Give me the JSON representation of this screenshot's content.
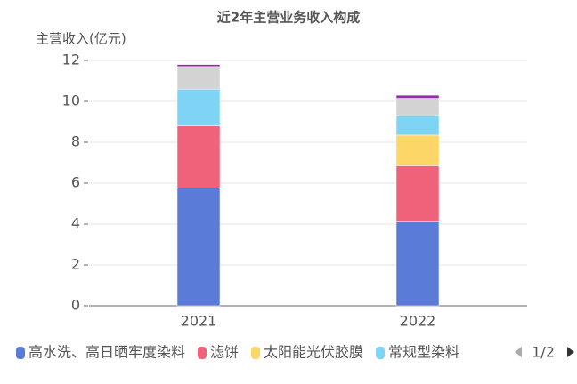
{
  "chart_data": {
    "type": "stacked_bar",
    "title": "近2年主营业务收入构成",
    "y_label": "主营收入(亿元)",
    "categories": [
      "2021",
      "2022"
    ],
    "series": [
      {
        "name": "高水洗、高日晒牢度染料",
        "color": "#5b7bd9",
        "values": [
          5.75,
          4.1
        ]
      },
      {
        "name": "滤饼",
        "color": "#f0617a",
        "values": [
          3.05,
          2.75
        ]
      },
      {
        "name": "太阳能光伏胶膜",
        "color": "#fcd667",
        "values": [
          0,
          1.5
        ]
      },
      {
        "name": "常规型染料",
        "color": "#7fd3f4",
        "values": [
          1.8,
          0.95
        ]
      },
      {
        "color": "#d3d3d3",
        "values": [
          1.1,
          0.85
        ]
      },
      {
        "color": "#9c27b0",
        "values": [
          0.1,
          0.15
        ]
      }
    ],
    "ylim": [
      0,
      12
    ],
    "yticks": [
      0,
      2,
      4,
      6,
      8,
      10,
      12
    ],
    "grid": true,
    "legend": "bottom",
    "legend_page": "1/2"
  }
}
